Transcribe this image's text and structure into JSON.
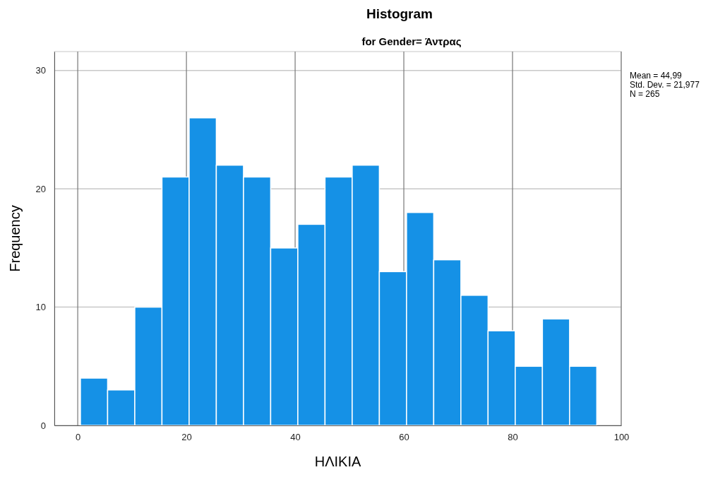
{
  "chart_data": {
    "type": "histogram",
    "title": "Histogram",
    "subtitle": "for Gender= Άντρας",
    "xlabel": "ΗΛΙΚΙΑ",
    "ylabel": "Frequency",
    "bins": [
      0.5,
      5.5,
      10.5,
      15.5,
      20.5,
      25.5,
      30.5,
      35.5,
      40.5,
      45.5,
      50.5,
      55.5,
      60.5,
      65.5,
      70.5,
      75.5,
      80.5,
      85.5,
      90.5,
      95.5
    ],
    "values": [
      4,
      3,
      10,
      21,
      26,
      22,
      21,
      15,
      17,
      21,
      22,
      13,
      18,
      14,
      11,
      8,
      5,
      9,
      5
    ],
    "color": "#1591e6",
    "xlim": [
      -4.3,
      100
    ],
    "xticks": [
      0,
      20,
      40,
      60,
      80,
      100
    ],
    "ylim": [
      0,
      31.6
    ],
    "yticks": [
      0,
      10,
      20,
      30
    ],
    "grid": true,
    "annotations": [
      "Mean = 44,99",
      "Std. Dev. = 21,977",
      "N = 265"
    ]
  }
}
